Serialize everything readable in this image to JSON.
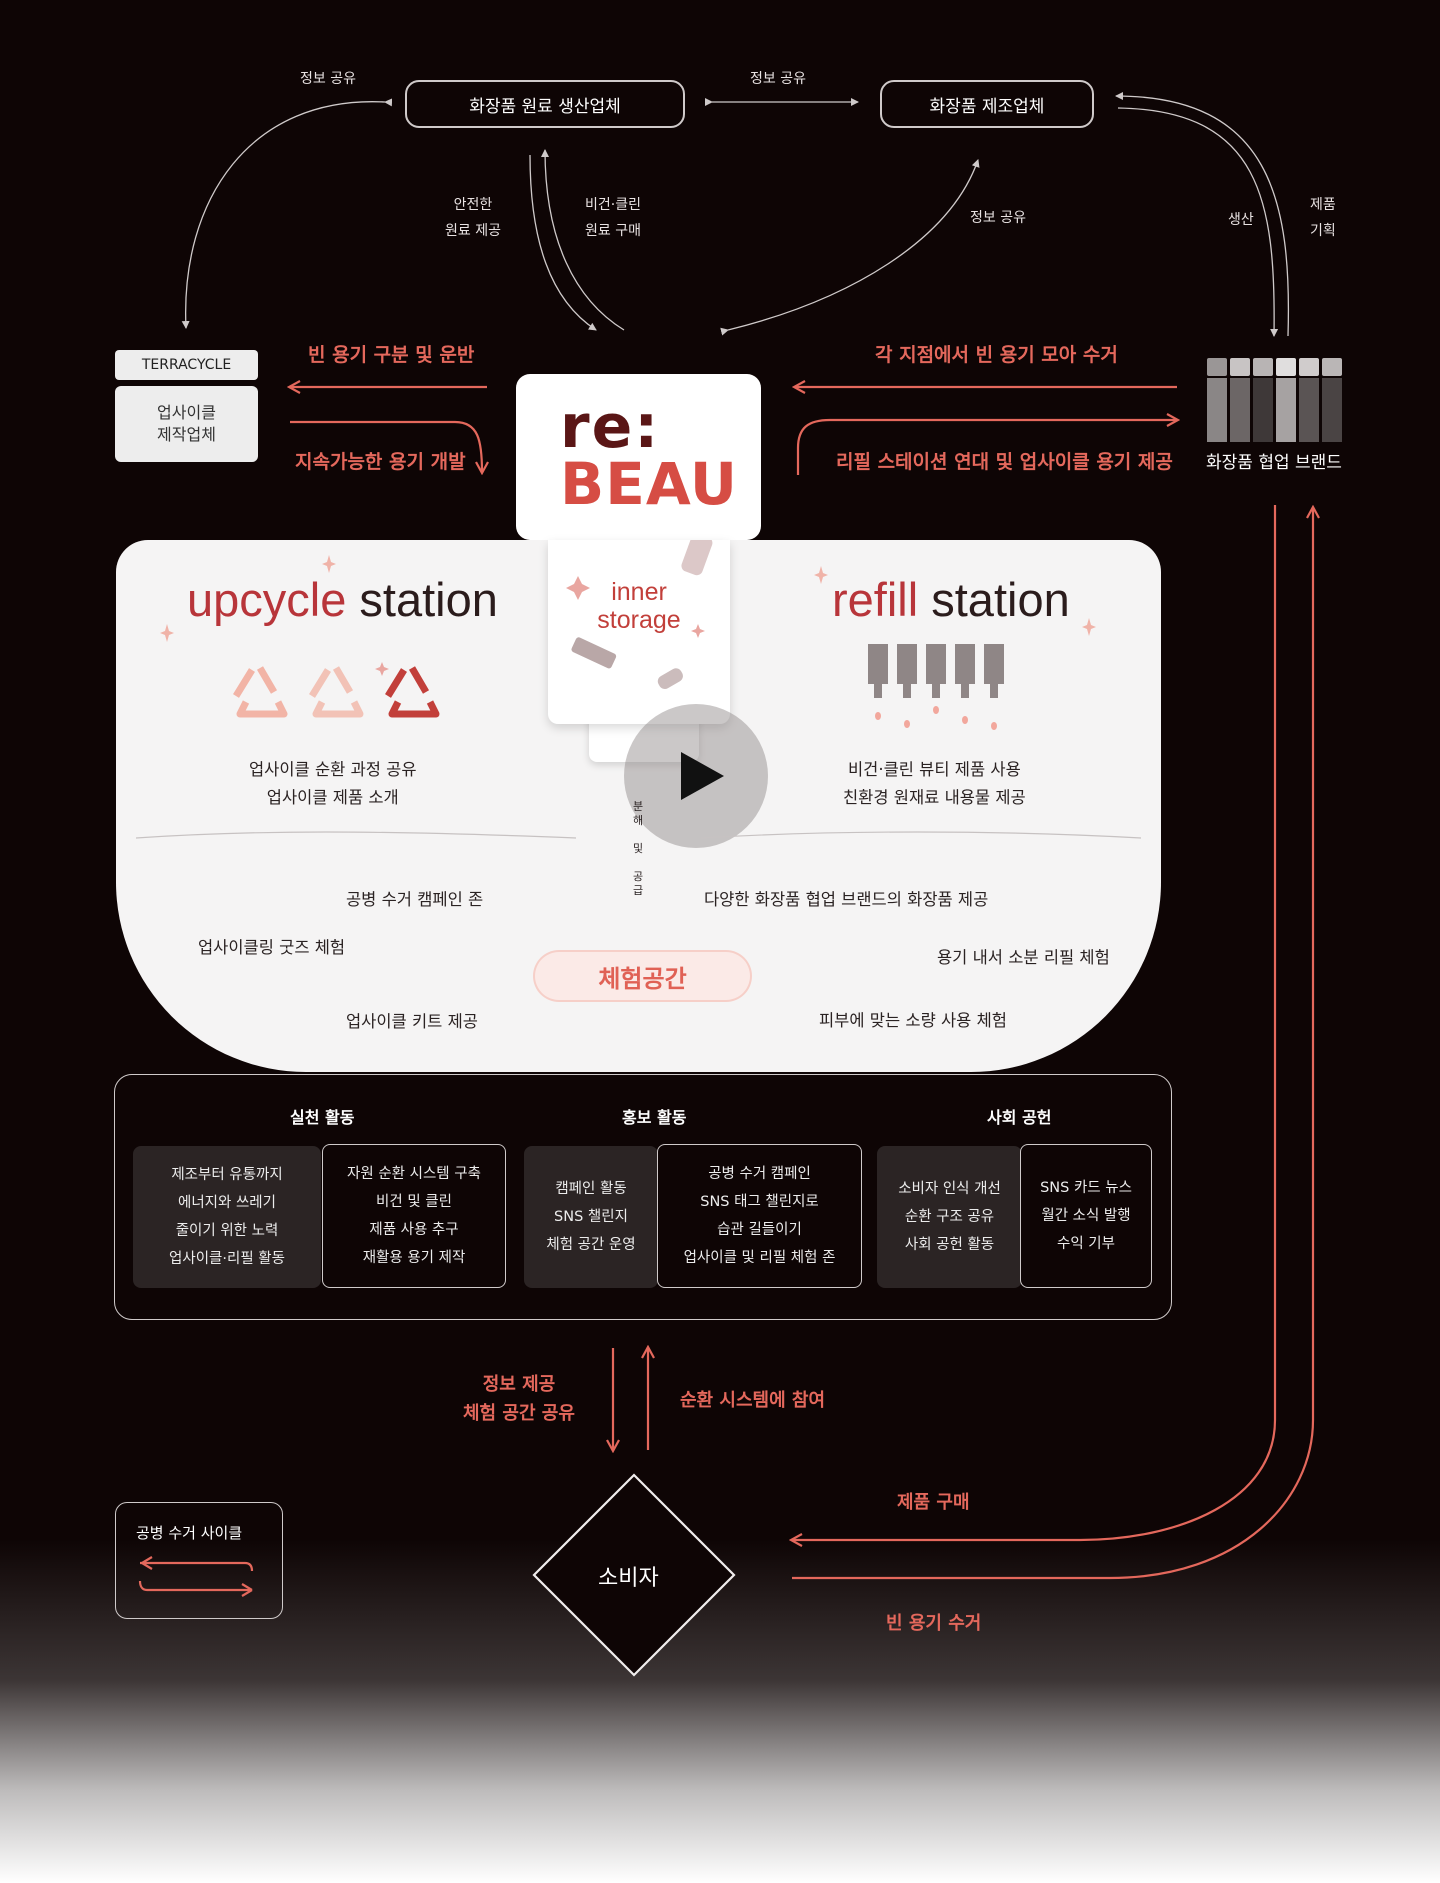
{
  "nodes": {
    "raw_supplier": "화장품 원료 생산업체",
    "manufacturer": "화장품 제조업체",
    "terracycle_tag": "TERRACYCLE",
    "upcycle_maker": [
      "업사이클",
      "제작업체"
    ],
    "brand_label": "화장품 협업 브랜드",
    "consumer": "소비자"
  },
  "logo": {
    "line1": "re:",
    "line2": "BEAU"
  },
  "flows": {
    "info_share_left": "정보 공유",
    "info_share_mid": "정보 공유",
    "info_share_right": "정보 공유",
    "safe_supply": [
      "안전한",
      "원료 제공"
    ],
    "vegan_buy": [
      "비건·클린",
      "원료 구매"
    ],
    "produce": "생산",
    "plan": [
      "제품",
      "기획"
    ],
    "sort_transport": "빈 용기 구분 및 운반",
    "sustain_dev": "지속가능한 용기 개발",
    "collect_branches": "각 지점에서 빈 용기 모아 수거",
    "refill_link": "리필 스테이션 연대 및 업사이클 용기 제공",
    "info_provide": [
      "정보 제공",
      "체험 공간 공유"
    ],
    "join_cycle": "순환 시스템에 참여",
    "buy_product": "제품 구매",
    "collect_empty": "빈 용기 수거"
  },
  "stations": {
    "upcycle_a": "upcycle",
    "upcycle_b": "station",
    "inner_a": "inner",
    "inner_b": "storage",
    "refill_a": "refill",
    "refill_b": "station",
    "upcycle_desc": [
      "업사이클 순환 과정 공유",
      "업사이클 제품 소개"
    ],
    "refill_desc": [
      "비건·클린 뷰티 제품 사용",
      "친환경 원재료 내용물 제공"
    ],
    "split_supply": [
      "분",
      "해",
      "및",
      "공",
      "급"
    ],
    "exp_left": [
      "공병 수거 캠페인 존",
      "업사이클링 굿즈 체험",
      "업사이클 키트 제공"
    ],
    "exp_right": [
      "다양한 화장품 협업 브랜드의 화장품 제공",
      "용기 내서 소분 리필 체험",
      "피부에 맞는 소량 사용 체험"
    ],
    "exp_title": "체험공간"
  },
  "activities": {
    "practice": {
      "title": "실천 활동",
      "left": [
        "제조부터 유통까지",
        "에너지와 쓰레기",
        "줄이기 위한 노력",
        "업사이클·리필 활동"
      ],
      "right": [
        "자원 순환 시스템 구축",
        "비건 및 클린",
        "제품 사용 추구",
        "재활용 용기 제작"
      ]
    },
    "promo": {
      "title": "홍보 활동",
      "left": [
        "캠페인 활동",
        "SNS 챌린지",
        "체험 공간 운영"
      ],
      "right": [
        "공병 수거 캠페인",
        "SNS 태그 챌린지로",
        "습관 길들이기",
        "업사이클 및 리필 체험 존"
      ]
    },
    "social": {
      "title": "사회 공헌",
      "left": [
        "소비자 인식 개선",
        "순환 구조 공유",
        "사회 공헌 활동"
      ],
      "right": [
        "SNS 카드 뉴스",
        "월간 소식 발행",
        "수익 기부"
      ]
    }
  },
  "legend": {
    "title": "공병 수거 사이클"
  },
  "colors": {
    "accent": "#e4685c",
    "background": "#0e0505",
    "panel": "#f5f4f4"
  }
}
